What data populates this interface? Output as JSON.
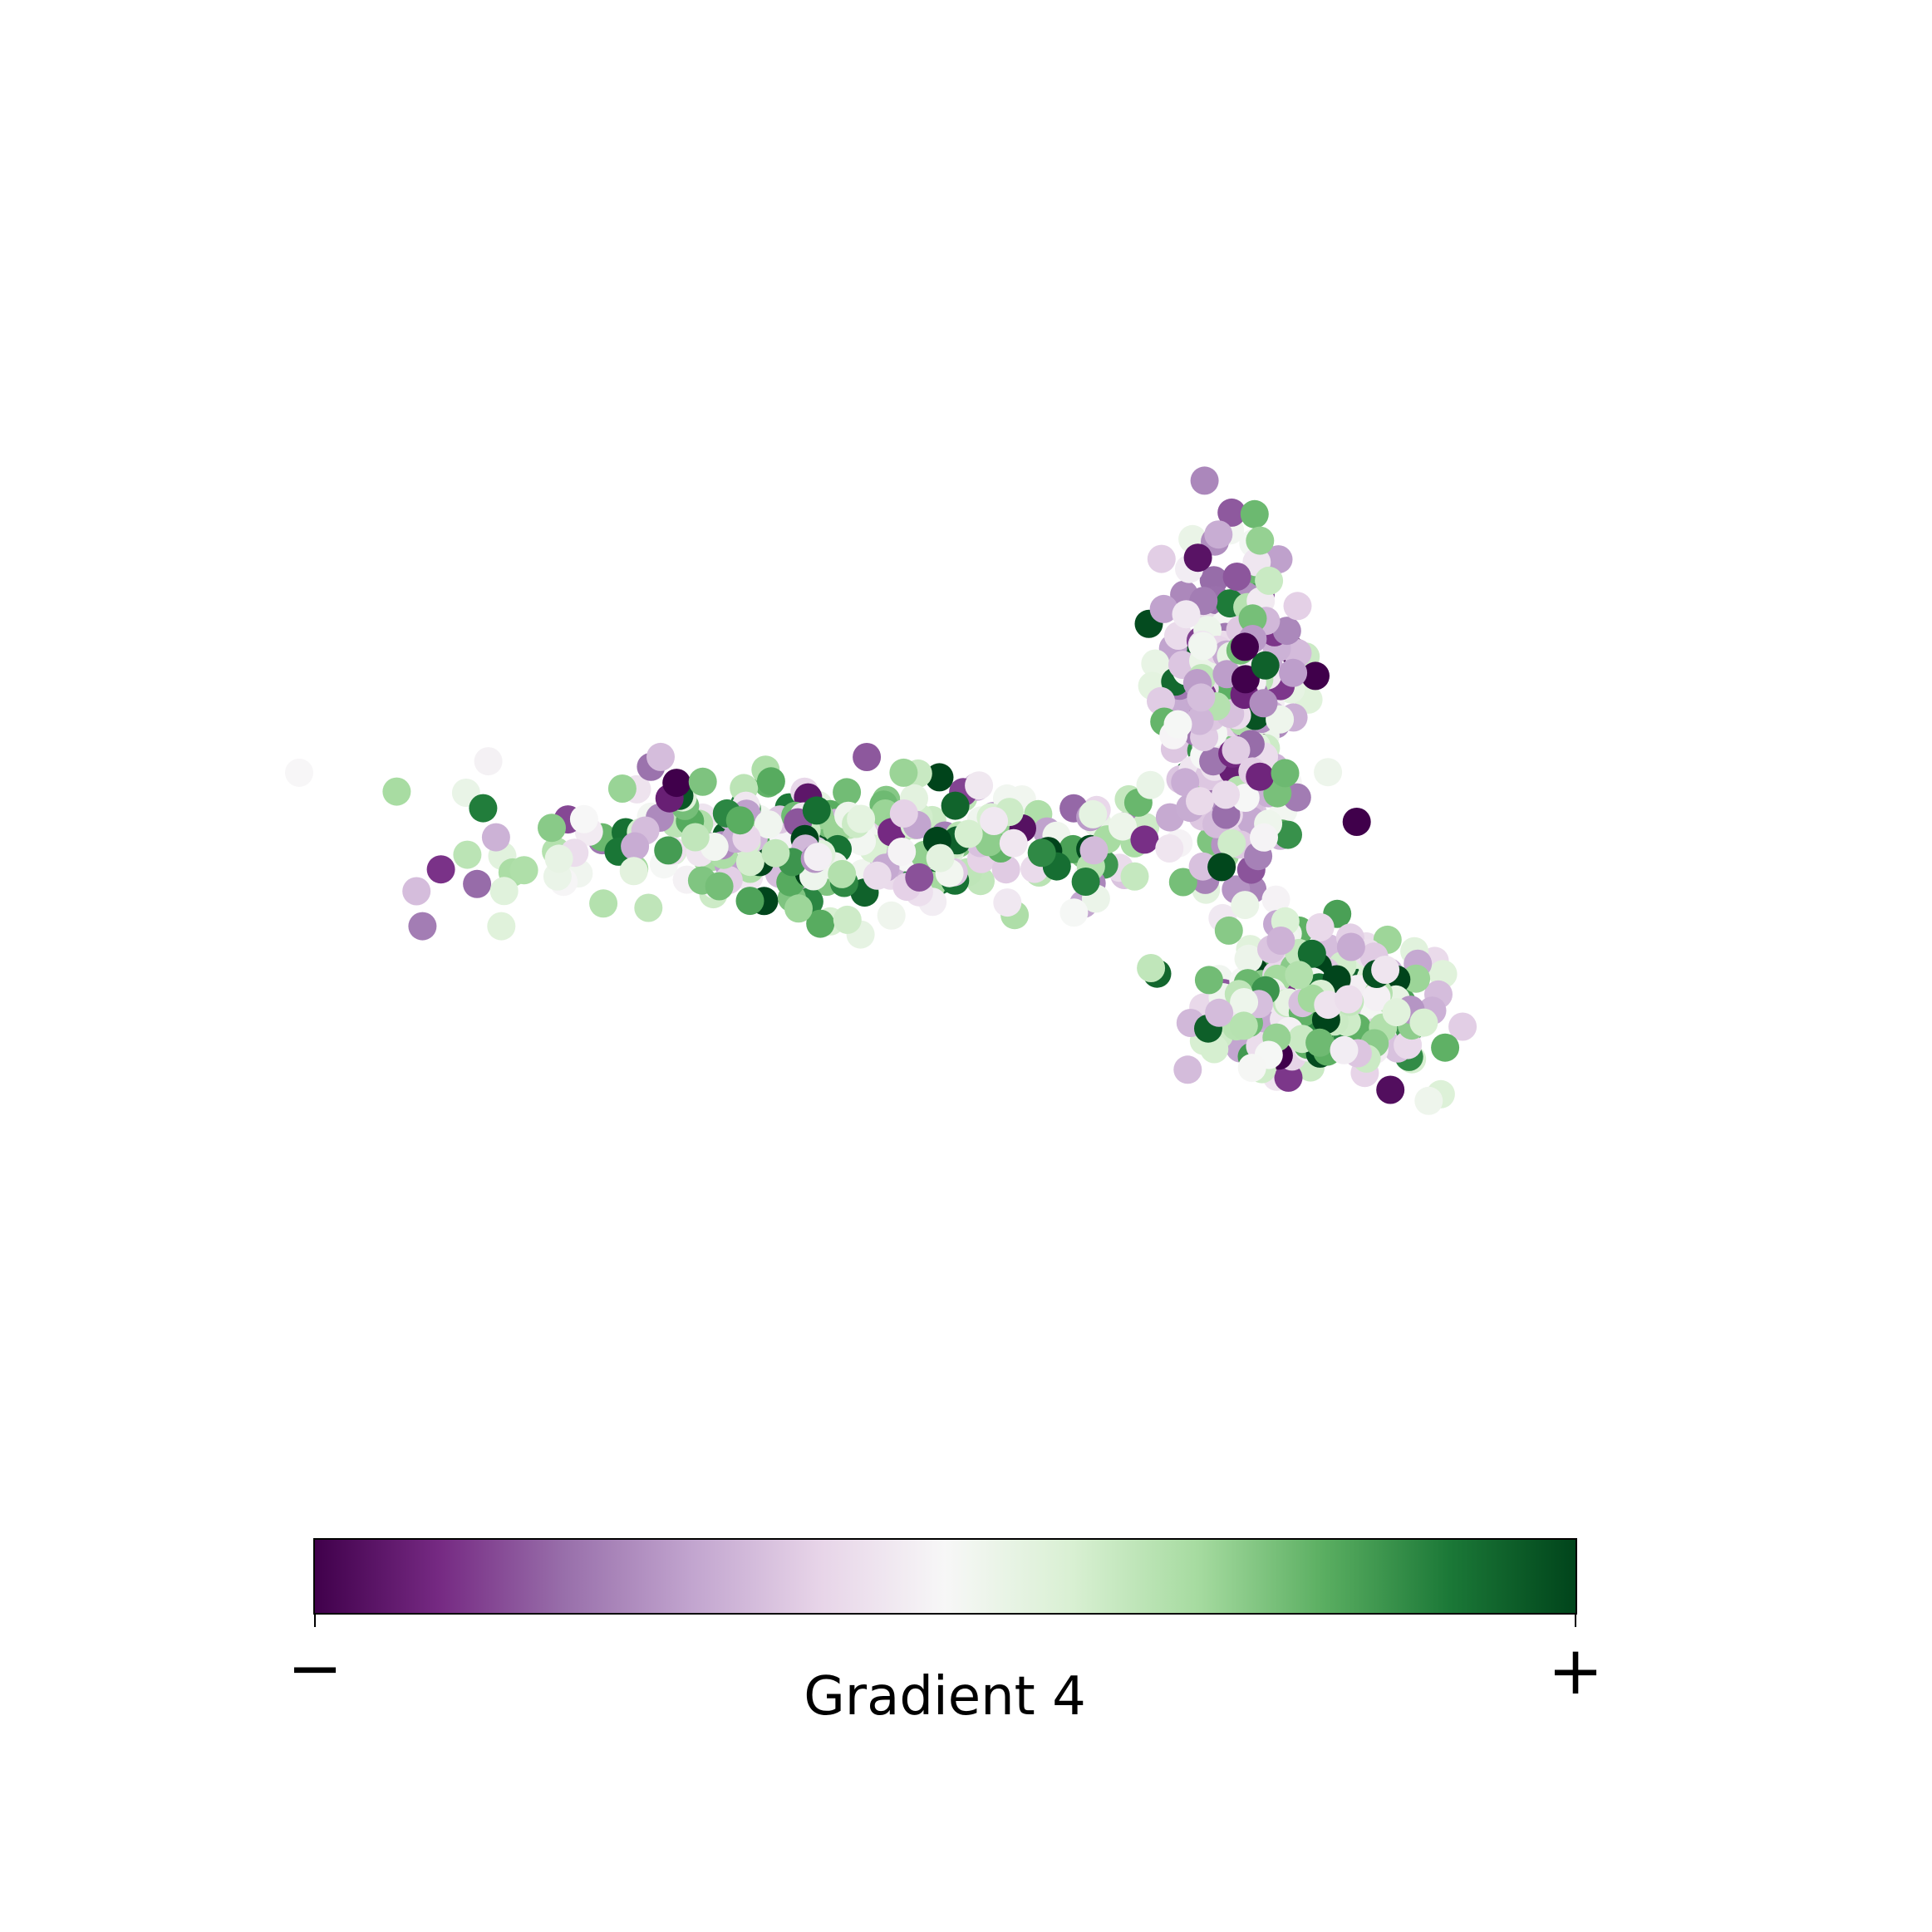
{
  "chart_data": {
    "type": "scatter",
    "title": "",
    "xlabel": "",
    "ylabel": "",
    "axes_visible": false,
    "grid": false,
    "colormap": "PRGn",
    "colormap_stops": [
      "#40004b",
      "#762a83",
      "#9970ab",
      "#c2a5cf",
      "#e7d4e8",
      "#f7f7f7",
      "#d9f0d3",
      "#a6dba0",
      "#5aae61",
      "#1b7837",
      "#00441b"
    ],
    "value_range": [
      -1,
      1
    ],
    "xlim": [
      0,
      100
    ],
    "ylim": [
      0,
      100
    ],
    "colorbar": {
      "label": "Gradient 4",
      "min_label": "−",
      "max_label": "+",
      "orientation": "horizontal",
      "placement": "bottom"
    },
    "clusters": [
      {
        "cx": 44,
        "cy": 56,
        "sx": 28,
        "sy": 8,
        "n": 300,
        "bias": 0.15
      },
      {
        "cx": 78,
        "cy": 70,
        "sx": 6,
        "sy": 18,
        "n": 260,
        "bias": -0.2
      },
      {
        "cx": 86,
        "cy": 38,
        "sx": 11,
        "sy": 8,
        "n": 230,
        "bias": 0.1
      }
    ]
  }
}
